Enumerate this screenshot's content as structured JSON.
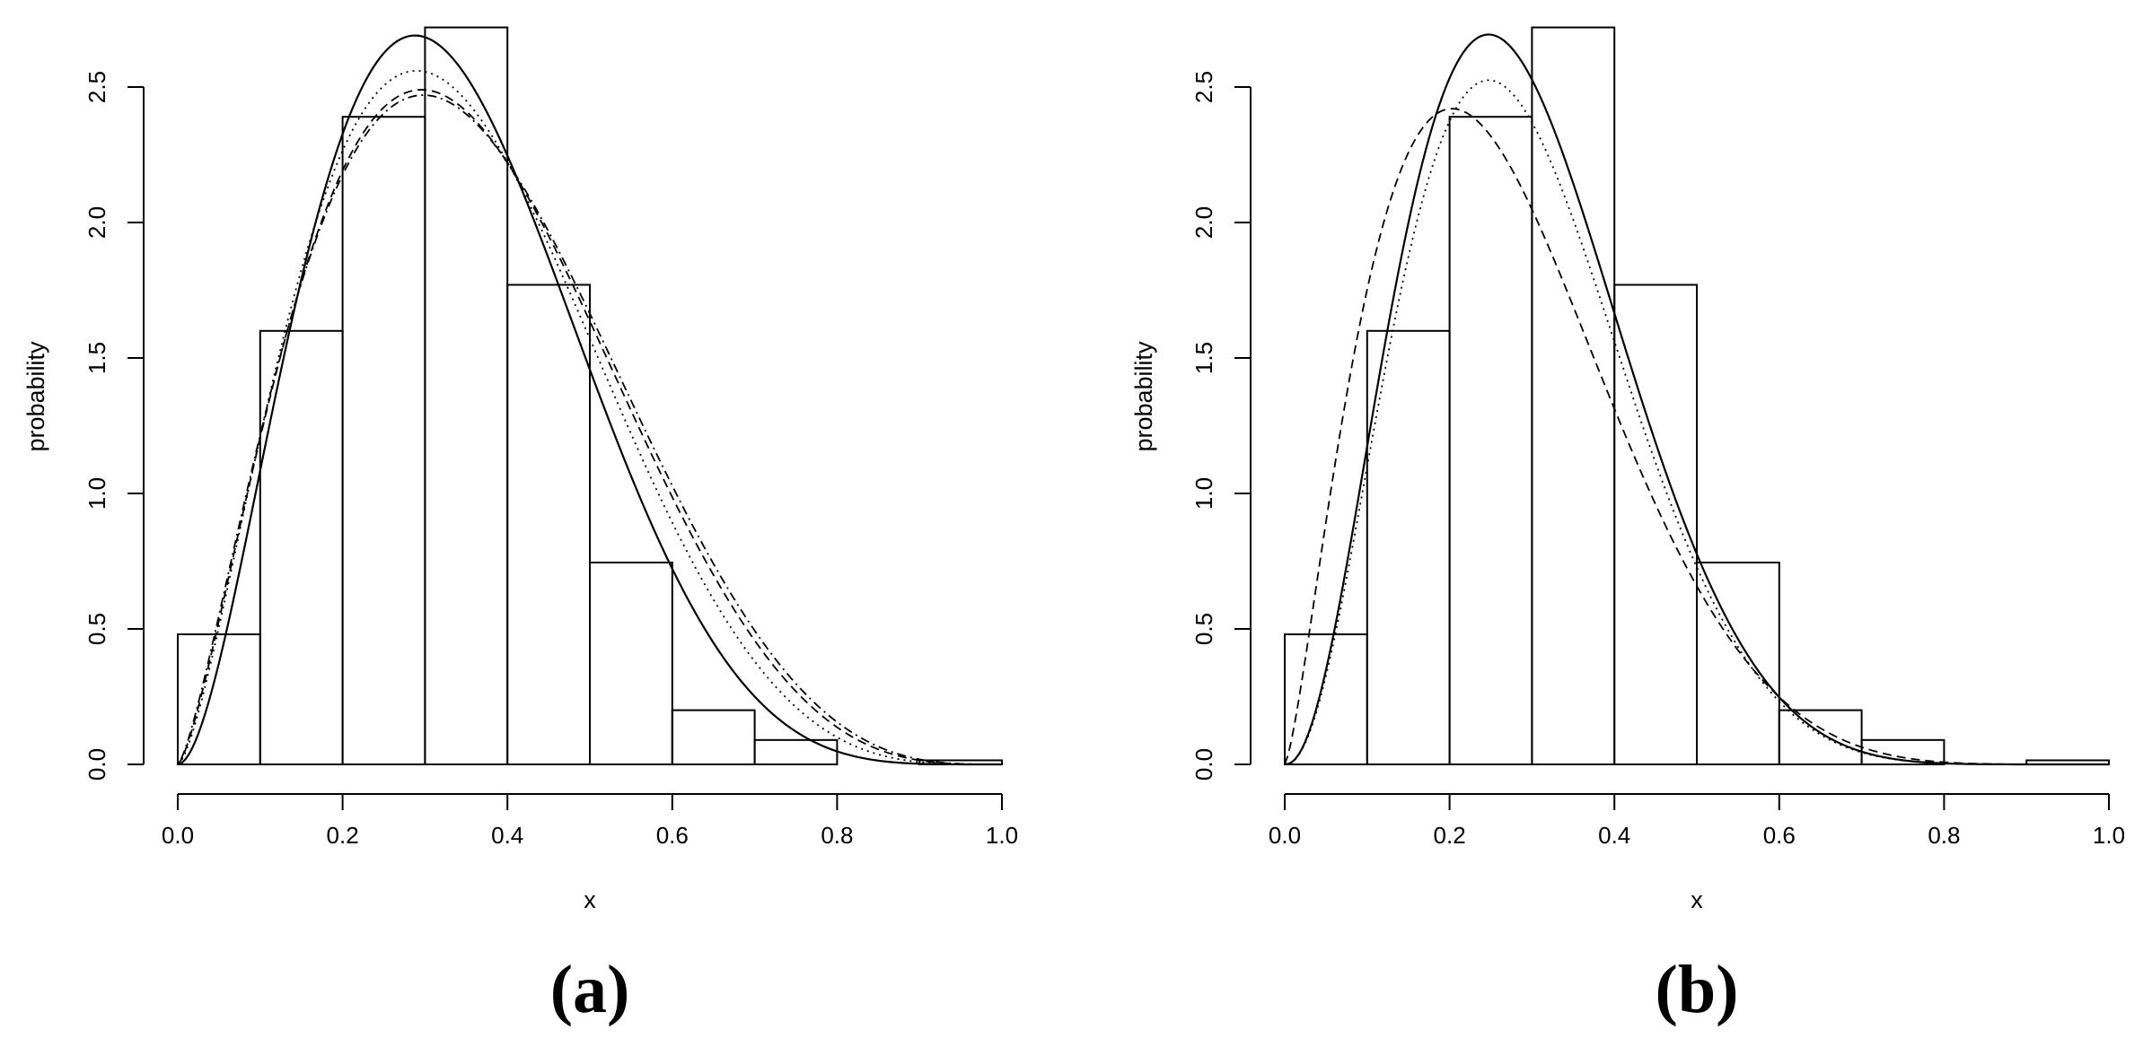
{
  "chart_data": [
    {
      "type": "histogram",
      "panel_label": "(a)",
      "xlabel": "x",
      "ylabel": "probability",
      "xlim": [
        0,
        1
      ],
      "ylim": [
        0,
        2.5
      ],
      "x_ticks": [
        0.0,
        0.2,
        0.4,
        0.6,
        0.8,
        1.0
      ],
      "x_tick_labels": [
        "0.0",
        "0.2",
        "0.4",
        "0.6",
        "0.8",
        "1.0"
      ],
      "y_ticks": [
        0.0,
        0.5,
        1.0,
        1.5,
        2.0,
        2.5
      ],
      "y_tick_labels": [
        "0.0",
        "0.5",
        "1.0",
        "1.5",
        "2.0",
        "2.5"
      ],
      "bins": [
        {
          "from": 0.0,
          "to": 0.1,
          "density": 0.48
        },
        {
          "from": 0.1,
          "to": 0.2,
          "density": 1.6
        },
        {
          "from": 0.2,
          "to": 0.3,
          "density": 2.39
        },
        {
          "from": 0.3,
          "to": 0.4,
          "density": 2.72
        },
        {
          "from": 0.4,
          "to": 0.5,
          "density": 1.77
        },
        {
          "from": 0.5,
          "to": 0.6,
          "density": 0.745
        },
        {
          "from": 0.6,
          "to": 0.7,
          "density": 0.2
        },
        {
          "from": 0.7,
          "to": 0.8,
          "density": 0.09
        },
        {
          "from": 0.8,
          "to": 0.9,
          "density": 0.0
        },
        {
          "from": 0.9,
          "to": 1.0,
          "density": 0.015
        }
      ],
      "curves": [
        {
          "line_style": "solid",
          "mode_x": 0.29,
          "peak": 2.69,
          "shape": [
            2.9,
            5.7
          ]
        },
        {
          "line_style": "dotted",
          "mode_x": 0.29,
          "peak": 2.56,
          "shape": [
            2.55,
            4.8
          ]
        },
        {
          "line_style": "dashed",
          "mode_x": 0.295,
          "peak": 2.49,
          "shape": [
            2.45,
            4.45
          ]
        },
        {
          "line_style": "dotdash",
          "mode_x": 0.3,
          "peak": 2.47,
          "shape": [
            2.4,
            4.3
          ]
        }
      ]
    },
    {
      "type": "histogram",
      "panel_label": "(b)",
      "xlabel": "x",
      "ylabel": "probability",
      "xlim": [
        0,
        1
      ],
      "ylim": [
        0,
        2.5
      ],
      "x_ticks": [
        0.0,
        0.2,
        0.4,
        0.6,
        0.8,
        1.0
      ],
      "x_tick_labels": [
        "0.0",
        "0.2",
        "0.4",
        "0.6",
        "0.8",
        "1.0"
      ],
      "y_ticks": [
        0.0,
        0.5,
        1.0,
        1.5,
        2.0,
        2.5
      ],
      "y_tick_labels": [
        "0.0",
        "0.5",
        "1.0",
        "1.5",
        "2.0",
        "2.5"
      ],
      "bins": [
        {
          "from": 0.0,
          "to": 0.1,
          "density": 0.48
        },
        {
          "from": 0.1,
          "to": 0.2,
          "density": 1.6
        },
        {
          "from": 0.2,
          "to": 0.3,
          "density": 2.39
        },
        {
          "from": 0.3,
          "to": 0.4,
          "density": 2.72
        },
        {
          "from": 0.4,
          "to": 0.5,
          "density": 1.77
        },
        {
          "from": 0.5,
          "to": 0.6,
          "density": 0.745
        },
        {
          "from": 0.6,
          "to": 0.7,
          "density": 0.2
        },
        {
          "from": 0.7,
          "to": 0.8,
          "density": 0.09
        },
        {
          "from": 0.8,
          "to": 0.9,
          "density": 0.0
        },
        {
          "from": 0.9,
          "to": 1.0,
          "density": 0.015
        }
      ],
      "curves": [
        {
          "line_style": "solid",
          "mode_x": 0.255,
          "peak": 2.69,
          "shape": [
            3.3,
            8.0
          ]
        },
        {
          "line_style": "dashed",
          "mode_x": 0.205,
          "peak": 2.42,
          "shape": [
            2.4,
            6.5
          ]
        },
        {
          "line_style": "dotted",
          "mode_x": 0.31,
          "peak": 2.31,
          "shape": [
            3.3,
            8.0
          ]
        }
      ]
    }
  ]
}
